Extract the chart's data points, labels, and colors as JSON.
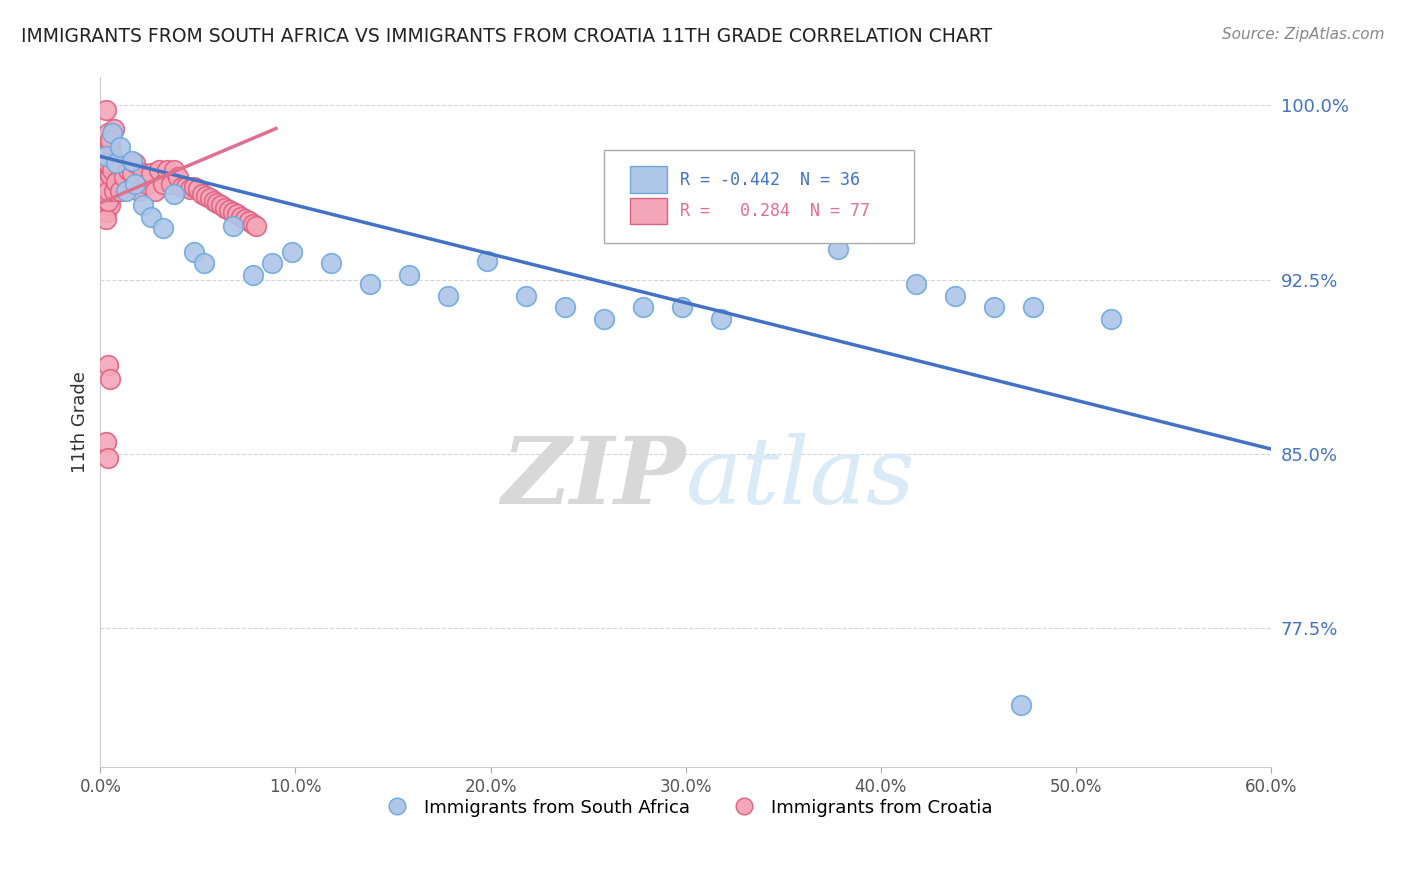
{
  "title": "IMMIGRANTS FROM SOUTH AFRICA VS IMMIGRANTS FROM CROATIA 11TH GRADE CORRELATION CHART",
  "source": "Source: ZipAtlas.com",
  "ylabel": "11th Grade",
  "xlim": [
    0.0,
    0.6
  ],
  "ylim": [
    0.715,
    1.012
  ],
  "xtick_labels": [
    "0.0%",
    "",
    "",
    "",
    "",
    "",
    "10.0%",
    "",
    "",
    "",
    "",
    "",
    "20.0%",
    "",
    "",
    "",
    "",
    "",
    "30.0%",
    "",
    "",
    "",
    "",
    "",
    "40.0%",
    "",
    "",
    "",
    "",
    "",
    "50.0%",
    "",
    "",
    "",
    "",
    "",
    "60.0%"
  ],
  "xtick_major_labels": [
    "0.0%",
    "10.0%",
    "20.0%",
    "30.0%",
    "40.0%",
    "50.0%",
    "60.0%"
  ],
  "xtick_major_values": [
    0.0,
    0.1,
    0.2,
    0.3,
    0.4,
    0.5,
    0.6
  ],
  "ytick_labels": [
    "100.0%",
    "92.5%",
    "85.0%",
    "77.5%"
  ],
  "ytick_values": [
    1.0,
    0.925,
    0.85,
    0.775
  ],
  "blue_label": "Immigrants from South Africa",
  "pink_label": "Immigrants from Croatia",
  "legend_blue_R": "-0.442",
  "legend_blue_N": "36",
  "legend_pink_R": " 0.284",
  "legend_pink_N": "77",
  "blue_color": "#aec6e8",
  "blue_edge_color": "#6fa8dc",
  "pink_color": "#f4a7b9",
  "pink_edge_color": "#e06080",
  "blue_line_color": "#4472c4",
  "pink_line_color": "#e07090",
  "watermark_color": "#daeaf7",
  "background_color": "#ffffff",
  "grid_color": "#cccccc",
  "blue_line_x0": 0.0,
  "blue_line_y0": 0.978,
  "blue_line_x1": 0.6,
  "blue_line_y1": 0.852,
  "pink_line_x0": 0.0,
  "pink_line_x1": 0.09,
  "pink_line_y0": 0.958,
  "pink_line_y1": 0.99,
  "blue_points_x": [
    0.003,
    0.006,
    0.008,
    0.01,
    0.013,
    0.016,
    0.018,
    0.022,
    0.026,
    0.032,
    0.038,
    0.048,
    0.053,
    0.068,
    0.078,
    0.088,
    0.098,
    0.118,
    0.138,
    0.158,
    0.178,
    0.198,
    0.218,
    0.238,
    0.258,
    0.278,
    0.298,
    0.318,
    0.348,
    0.378,
    0.418,
    0.438,
    0.458,
    0.478,
    0.518,
    0.472
  ],
  "blue_points_y": [
    0.978,
    0.988,
    0.975,
    0.982,
    0.963,
    0.976,
    0.966,
    0.957,
    0.952,
    0.947,
    0.962,
    0.937,
    0.932,
    0.948,
    0.927,
    0.932,
    0.937,
    0.932,
    0.923,
    0.927,
    0.918,
    0.933,
    0.918,
    0.913,
    0.908,
    0.913,
    0.913,
    0.908,
    0.948,
    0.938,
    0.923,
    0.918,
    0.913,
    0.913,
    0.908,
    0.742
  ],
  "pink_points_x": [
    0.003,
    0.004,
    0.005,
    0.006,
    0.007,
    0.003,
    0.004,
    0.005,
    0.006,
    0.003,
    0.004,
    0.005,
    0.003,
    0.004,
    0.005,
    0.003,
    0.004,
    0.005,
    0.003,
    0.004,
    0.005,
    0.003,
    0.004,
    0.006,
    0.003,
    0.004,
    0.005,
    0.006,
    0.003,
    0.004,
    0.005,
    0.003,
    0.004,
    0.005,
    0.006,
    0.007,
    0.008,
    0.01,
    0.012,
    0.014,
    0.016,
    0.018,
    0.02,
    0.022,
    0.024,
    0.026,
    0.028,
    0.03,
    0.032,
    0.034,
    0.036,
    0.038,
    0.04,
    0.042,
    0.044,
    0.046,
    0.048,
    0.05,
    0.052,
    0.054,
    0.056,
    0.058,
    0.06,
    0.062,
    0.064,
    0.066,
    0.068,
    0.07,
    0.072,
    0.074,
    0.076,
    0.078,
    0.08,
    0.004,
    0.005,
    0.003,
    0.004
  ],
  "pink_points_y": [
    0.998,
    0.988,
    0.983,
    0.978,
    0.99,
    0.975,
    0.97,
    0.968,
    0.975,
    0.963,
    0.972,
    0.967,
    0.96,
    0.968,
    0.963,
    0.957,
    0.965,
    0.96,
    0.954,
    0.962,
    0.957,
    0.951,
    0.959,
    0.965,
    0.97,
    0.968,
    0.963,
    0.97,
    0.966,
    0.963,
    0.97,
    0.975,
    0.975,
    0.985,
    0.972,
    0.963,
    0.967,
    0.963,
    0.969,
    0.972,
    0.971,
    0.975,
    0.963,
    0.971,
    0.966,
    0.971,
    0.963,
    0.972,
    0.966,
    0.972,
    0.966,
    0.972,
    0.969,
    0.965,
    0.965,
    0.964,
    0.965,
    0.964,
    0.962,
    0.961,
    0.96,
    0.959,
    0.958,
    0.957,
    0.956,
    0.955,
    0.954,
    0.953,
    0.952,
    0.951,
    0.95,
    0.949,
    0.948,
    0.888,
    0.882,
    0.855,
    0.848
  ]
}
